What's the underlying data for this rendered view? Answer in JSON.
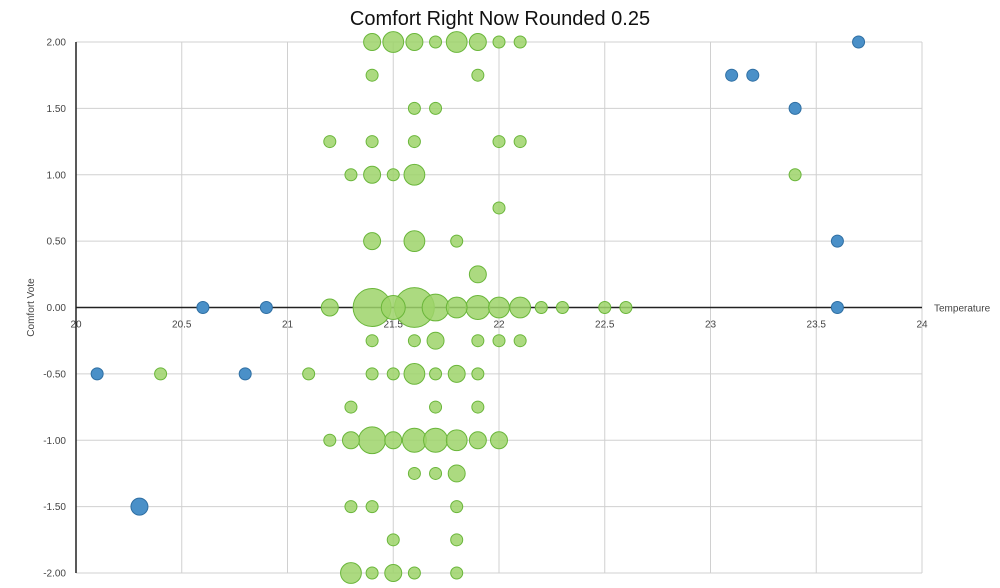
{
  "chart_data": {
    "type": "scatter",
    "title": "Comfort Right Now Rounded 0.25",
    "xlabel": "Temperature",
    "ylabel": "Comfort Vote",
    "xlim": [
      20,
      24
    ],
    "ylim": [
      -2,
      2
    ],
    "x_ticks": [
      "20",
      "20.5",
      "21",
      "21.5",
      "22",
      "22.5",
      "23",
      "23.5",
      "24"
    ],
    "y_ticks": [
      "2.00",
      "1.50",
      "1.00",
      "0.50",
      "0.00",
      "-0.50",
      "-1.00",
      "-1.50",
      "-2.00"
    ],
    "grid": true,
    "legend": "none",
    "colors": {
      "green_fill": "#9ed36a",
      "green_stroke": "#6ab63a",
      "blue_fill": "#4a90c8",
      "blue_stroke": "#2f6fa3",
      "grid": "#d0d0d0",
      "axis": "#222222"
    },
    "series": [
      {
        "color": "green",
        "points": [
          {
            "x": 21.4,
            "y": 2.0,
            "size": 2
          },
          {
            "x": 21.5,
            "y": 2.0,
            "size": 3
          },
          {
            "x": 21.6,
            "y": 2.0,
            "size": 2
          },
          {
            "x": 21.7,
            "y": 2.0,
            "size": 1
          },
          {
            "x": 21.8,
            "y": 2.0,
            "size": 3
          },
          {
            "x": 21.9,
            "y": 2.0,
            "size": 2
          },
          {
            "x": 22.0,
            "y": 2.0,
            "size": 1
          },
          {
            "x": 22.1,
            "y": 2.0,
            "size": 1
          },
          {
            "x": 21.4,
            "y": 1.75,
            "size": 1
          },
          {
            "x": 21.9,
            "y": 1.75,
            "size": 1
          },
          {
            "x": 21.6,
            "y": 1.5,
            "size": 1
          },
          {
            "x": 21.7,
            "y": 1.5,
            "size": 1
          },
          {
            "x": 21.2,
            "y": 1.25,
            "size": 1
          },
          {
            "x": 21.4,
            "y": 1.25,
            "size": 1
          },
          {
            "x": 21.6,
            "y": 1.25,
            "size": 1
          },
          {
            "x": 22.0,
            "y": 1.25,
            "size": 1
          },
          {
            "x": 22.1,
            "y": 1.25,
            "size": 1
          },
          {
            "x": 21.3,
            "y": 1.0,
            "size": 1
          },
          {
            "x": 21.4,
            "y": 1.0,
            "size": 2
          },
          {
            "x": 21.5,
            "y": 1.0,
            "size": 1
          },
          {
            "x": 21.6,
            "y": 1.0,
            "size": 3
          },
          {
            "x": 23.4,
            "y": 1.0,
            "size": 1
          },
          {
            "x": 22.0,
            "y": 0.75,
            "size": 1
          },
          {
            "x": 21.4,
            "y": 0.5,
            "size": 2
          },
          {
            "x": 21.6,
            "y": 0.5,
            "size": 3
          },
          {
            "x": 21.8,
            "y": 0.5,
            "size": 1
          },
          {
            "x": 21.9,
            "y": 0.25,
            "size": 2
          },
          {
            "x": 21.2,
            "y": 0.0,
            "size": 2
          },
          {
            "x": 21.4,
            "y": 0.0,
            "size": 10
          },
          {
            "x": 21.5,
            "y": 0.0,
            "size": 4
          },
          {
            "x": 21.6,
            "y": 0.0,
            "size": 11
          },
          {
            "x": 21.7,
            "y": 0.0,
            "size": 5
          },
          {
            "x": 21.8,
            "y": 0.0,
            "size": 3
          },
          {
            "x": 21.9,
            "y": 0.0,
            "size": 4
          },
          {
            "x": 22.0,
            "y": 0.0,
            "size": 3
          },
          {
            "x": 22.1,
            "y": 0.0,
            "size": 3
          },
          {
            "x": 22.2,
            "y": 0.0,
            "size": 1
          },
          {
            "x": 22.3,
            "y": 0.0,
            "size": 1
          },
          {
            "x": 22.5,
            "y": 0.0,
            "size": 1
          },
          {
            "x": 22.6,
            "y": 0.0,
            "size": 1
          },
          {
            "x": 21.4,
            "y": -0.25,
            "size": 1
          },
          {
            "x": 21.6,
            "y": -0.25,
            "size": 1
          },
          {
            "x": 21.7,
            "y": -0.25,
            "size": 2
          },
          {
            "x": 21.9,
            "y": -0.25,
            "size": 1
          },
          {
            "x": 22.0,
            "y": -0.25,
            "size": 1
          },
          {
            "x": 22.1,
            "y": -0.25,
            "size": 1
          },
          {
            "x": 20.4,
            "y": -0.5,
            "size": 1
          },
          {
            "x": 21.1,
            "y": -0.5,
            "size": 1
          },
          {
            "x": 21.4,
            "y": -0.5,
            "size": 1
          },
          {
            "x": 21.5,
            "y": -0.5,
            "size": 1
          },
          {
            "x": 21.6,
            "y": -0.5,
            "size": 3
          },
          {
            "x": 21.7,
            "y": -0.5,
            "size": 1
          },
          {
            "x": 21.8,
            "y": -0.5,
            "size": 2
          },
          {
            "x": 21.9,
            "y": -0.5,
            "size": 1
          },
          {
            "x": 21.3,
            "y": -0.75,
            "size": 1
          },
          {
            "x": 21.7,
            "y": -0.75,
            "size": 1
          },
          {
            "x": 21.9,
            "y": -0.75,
            "size": 1
          },
          {
            "x": 21.2,
            "y": -1.0,
            "size": 1
          },
          {
            "x": 21.3,
            "y": -1.0,
            "size": 2
          },
          {
            "x": 21.4,
            "y": -1.0,
            "size": 5
          },
          {
            "x": 21.5,
            "y": -1.0,
            "size": 2
          },
          {
            "x": 21.6,
            "y": -1.0,
            "size": 4
          },
          {
            "x": 21.7,
            "y": -1.0,
            "size": 4
          },
          {
            "x": 21.8,
            "y": -1.0,
            "size": 3
          },
          {
            "x": 21.9,
            "y": -1.0,
            "size": 2
          },
          {
            "x": 22.0,
            "y": -1.0,
            "size": 2
          },
          {
            "x": 21.6,
            "y": -1.25,
            "size": 1
          },
          {
            "x": 21.7,
            "y": -1.25,
            "size": 1
          },
          {
            "x": 21.8,
            "y": -1.25,
            "size": 2
          },
          {
            "x": 21.3,
            "y": -1.5,
            "size": 1
          },
          {
            "x": 21.4,
            "y": -1.5,
            "size": 1
          },
          {
            "x": 21.8,
            "y": -1.5,
            "size": 1
          },
          {
            "x": 21.5,
            "y": -1.75,
            "size": 1
          },
          {
            "x": 21.8,
            "y": -1.75,
            "size": 1
          },
          {
            "x": 21.3,
            "y": -2.0,
            "size": 3
          },
          {
            "x": 21.4,
            "y": -2.0,
            "size": 1
          },
          {
            "x": 21.5,
            "y": -2.0,
            "size": 2
          },
          {
            "x": 21.6,
            "y": -2.0,
            "size": 1
          },
          {
            "x": 21.8,
            "y": -2.0,
            "size": 1
          }
        ]
      },
      {
        "color": "blue",
        "points": [
          {
            "x": 23.7,
            "y": 2.0,
            "size": 1
          },
          {
            "x": 23.1,
            "y": 1.75,
            "size": 1
          },
          {
            "x": 23.2,
            "y": 1.75,
            "size": 1
          },
          {
            "x": 23.4,
            "y": 1.5,
            "size": 1
          },
          {
            "x": 23.6,
            "y": 0.5,
            "size": 1
          },
          {
            "x": 20.6,
            "y": 0.0,
            "size": 1
          },
          {
            "x": 20.9,
            "y": 0.0,
            "size": 1
          },
          {
            "x": 23.6,
            "y": 0.0,
            "size": 1
          },
          {
            "x": 20.1,
            "y": -0.5,
            "size": 1
          },
          {
            "x": 20.8,
            "y": -0.5,
            "size": 1
          },
          {
            "x": 20.3,
            "y": -1.5,
            "size": 2
          }
        ]
      }
    ]
  }
}
